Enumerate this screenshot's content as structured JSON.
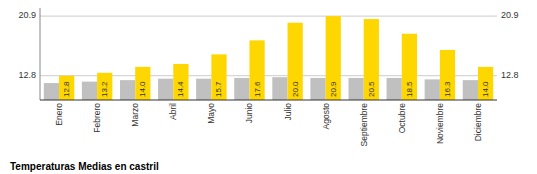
{
  "chart_data": {
    "type": "bar",
    "title": "Temperaturas Medias en castril",
    "categories": [
      "Enero",
      "Febrero",
      "Marzo",
      "Abril",
      "Mayo",
      "Junio",
      "Julio",
      "Agosto",
      "Septiembre",
      "Octubre",
      "Noviembre",
      "Diciembre"
    ],
    "series": [
      {
        "color": "#C0C0C0",
        "values": [
          11.8,
          12.0,
          12.2,
          12.4,
          12.4,
          12.5,
          12.6,
          12.5,
          12.5,
          12.5,
          12.3,
          12.2
        ]
      },
      {
        "color": "#FFD700",
        "values": [
          12.8,
          13.2,
          14.0,
          14.4,
          15.7,
          17.6,
          20.0,
          20.9,
          20.5,
          18.5,
          16.3,
          14.0
        ],
        "value_labels": [
          "12.8",
          "13.2",
          "14.0",
          "14.4",
          "15.7",
          "17.6",
          "20.0",
          "20.9",
          "20.5",
          "18.5",
          "16.3",
          "14.0"
        ],
        "data_labels": true
      }
    ],
    "ylim": [
      9.5,
      22.0
    ],
    "yticks": [
      12.8,
      20.9
    ],
    "grid": true
  }
}
